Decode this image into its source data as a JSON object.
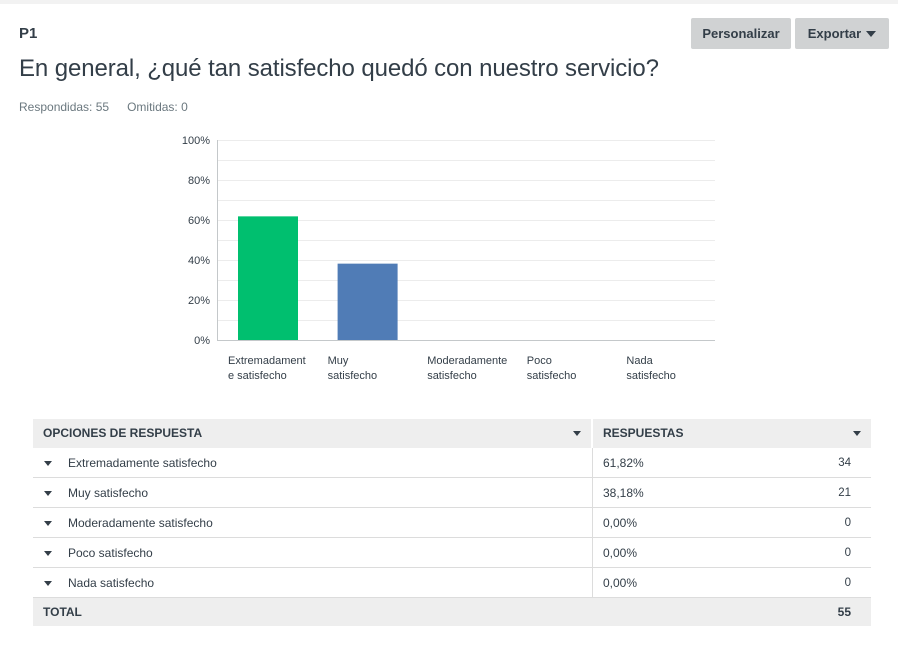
{
  "question": {
    "number": "P1",
    "title": "En general, ¿qué tan satisfecho quedó con nuestro servicio?",
    "answered_label": "Respondidas: 55",
    "skipped_label": "Omitidas: 0"
  },
  "toolbar": {
    "customize_label": "Personalizar",
    "export_label": "Exportar"
  },
  "chart_data": {
    "type": "bar",
    "categories": [
      [
        "Extremadament",
        "e satisfecho"
      ],
      [
        "Muy",
        "satisfecho"
      ],
      [
        "Moderadamente",
        "satisfecho"
      ],
      [
        "Poco",
        "satisfecho"
      ],
      [
        "Nada",
        "satisfecho"
      ]
    ],
    "values": [
      61.82,
      38.18,
      0,
      0,
      0
    ],
    "ylim": [
      0,
      100
    ],
    "yticks": [
      "0%",
      "20%",
      "40%",
      "60%",
      "80%",
      "100%"
    ],
    "bar_colors": [
      "#00bf6f",
      "#507cb6",
      "#507cb6",
      "#507cb6",
      "#507cb6"
    ],
    "grid": true
  },
  "table": {
    "header_options": "OPCIONES DE RESPUESTA",
    "header_responses": "RESPUESTAS",
    "rows": [
      {
        "label": "Extremadamente satisfecho",
        "percent": "61,82%",
        "count": "34"
      },
      {
        "label": "Muy satisfecho",
        "percent": "38,18%",
        "count": "21"
      },
      {
        "label": "Moderadamente satisfecho",
        "percent": "0,00%",
        "count": "0"
      },
      {
        "label": "Poco satisfecho",
        "percent": "0,00%",
        "count": "0"
      },
      {
        "label": "Nada satisfecho",
        "percent": "0,00%",
        "count": "0"
      }
    ],
    "total_label": "TOTAL",
    "total_value": "55"
  }
}
